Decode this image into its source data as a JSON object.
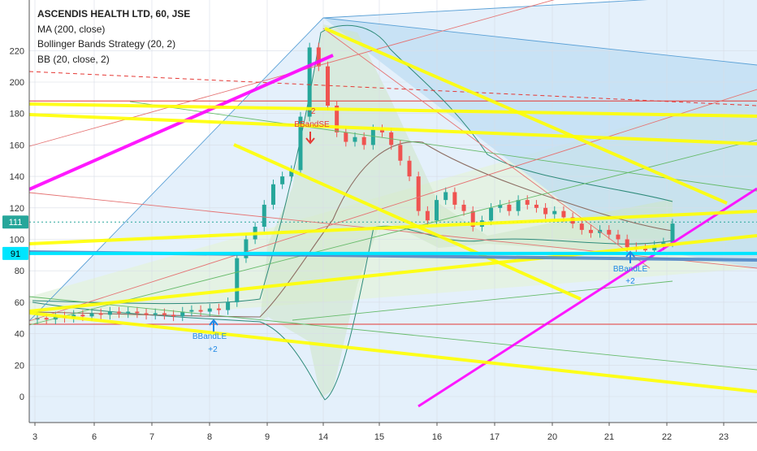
{
  "chart_data": {
    "type": "line",
    "title": "ASCENDIS HEALTH LTD, 60, JSE",
    "indicators": [
      "MA (200, close)",
      "Bollinger Bands Strategy (20, 2)",
      "BB (20, close, 2)"
    ],
    "y_ticks": [
      0,
      20,
      40,
      60,
      80,
      100,
      120,
      140,
      160,
      180,
      200,
      220
    ],
    "x_ticks": [
      "3",
      "6",
      "7",
      "8",
      "9",
      "14",
      "15",
      "16",
      "17",
      "20",
      "21",
      "22",
      "23"
    ],
    "ylim": [
      -15,
      240
    ],
    "price_labels": [
      {
        "text": "111",
        "value": 111,
        "color": "#26a69a"
      },
      {
        "text": "91",
        "value": 91,
        "color": "#00e5ff"
      }
    ],
    "horizontal_levels": [
      {
        "value": 188,
        "color": "#e53935"
      },
      {
        "value": 46,
        "color": "#e53935"
      },
      {
        "value": 111,
        "color": "#26a69a"
      }
    ],
    "candles_close": [
      50,
      49,
      51,
      50,
      52,
      51,
      53,
      52,
      54,
      53,
      54,
      53,
      52,
      53,
      52,
      51,
      54,
      55,
      54,
      56,
      55,
      60,
      88,
      100,
      108,
      122,
      135,
      140,
      144,
      178,
      222,
      210,
      185,
      168,
      162,
      165,
      160,
      170,
      168,
      160,
      150,
      140,
      118,
      112,
      125,
      130,
      122,
      118,
      108,
      112,
      120,
      122,
      118,
      125,
      122,
      120,
      116,
      118,
      114,
      110,
      106,
      104,
      106,
      103,
      100,
      95,
      94,
      93,
      96,
      98,
      110
    ],
    "annotations": [
      {
        "text": "-2",
        "color": "#e53935"
      },
      {
        "text": "BBandSE",
        "color": "#e53935"
      },
      {
        "text": "BBandLE",
        "color": "#1e88e5"
      },
      {
        "text": "+2",
        "color": "#1e88e5"
      },
      {
        "text": "BBandLE",
        "color": "#1e88e5"
      },
      {
        "text": "+2",
        "color": "#1e88e5"
      }
    ]
  }
}
